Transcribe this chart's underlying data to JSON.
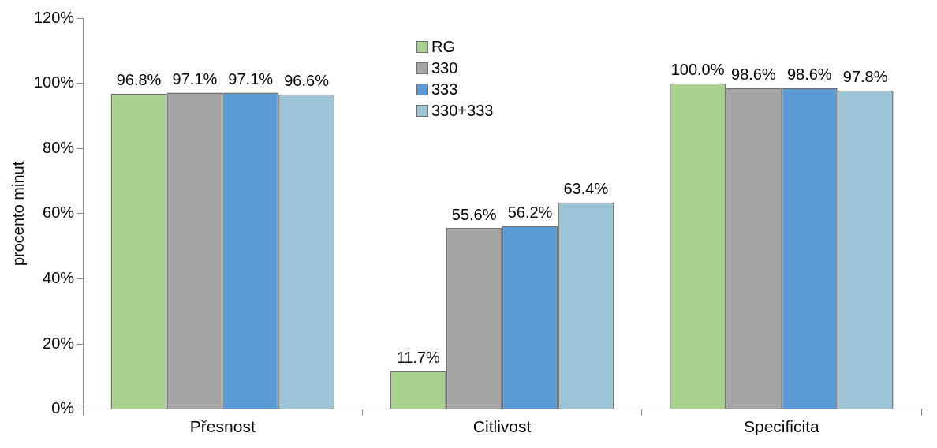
{
  "chart_data": {
    "type": "bar",
    "ylabel": "procento minut",
    "categories": [
      "Přesnost",
      "Citlivost",
      "Specificita"
    ],
    "series": [
      {
        "name": "RG",
        "color": "#a9d18e",
        "values": [
          96.8,
          11.7,
          100.0
        ],
        "value_labels": [
          "96.8%",
          "11.7%",
          "100.0%"
        ]
      },
      {
        "name": "330",
        "color": "#a5a5a5",
        "values": [
          97.1,
          55.6,
          98.6
        ],
        "value_labels": [
          "97.1%",
          "55.6%",
          "98.6%"
        ]
      },
      {
        "name": "333",
        "color": "#5b9bd5",
        "values": [
          97.1,
          56.2,
          98.6
        ],
        "value_labels": [
          "97.1%",
          "56.2%",
          "98.6%"
        ]
      },
      {
        "name": "330+333",
        "color": "#9dc3d6",
        "values": [
          96.6,
          63.4,
          97.8
        ],
        "value_labels": [
          "96.6%",
          "63.4%",
          "97.8%"
        ]
      }
    ],
    "ylim": [
      0,
      120
    ],
    "yticks": [
      {
        "value": 0,
        "label": "0%"
      },
      {
        "value": 20,
        "label": "20%"
      },
      {
        "value": 40,
        "label": "40%"
      },
      {
        "value": 60,
        "label": "60%"
      },
      {
        "value": 80,
        "label": "80%"
      },
      {
        "value": 100,
        "label": "100%"
      },
      {
        "value": 120,
        "label": "120%"
      }
    ],
    "grid": false,
    "legend": "top"
  }
}
